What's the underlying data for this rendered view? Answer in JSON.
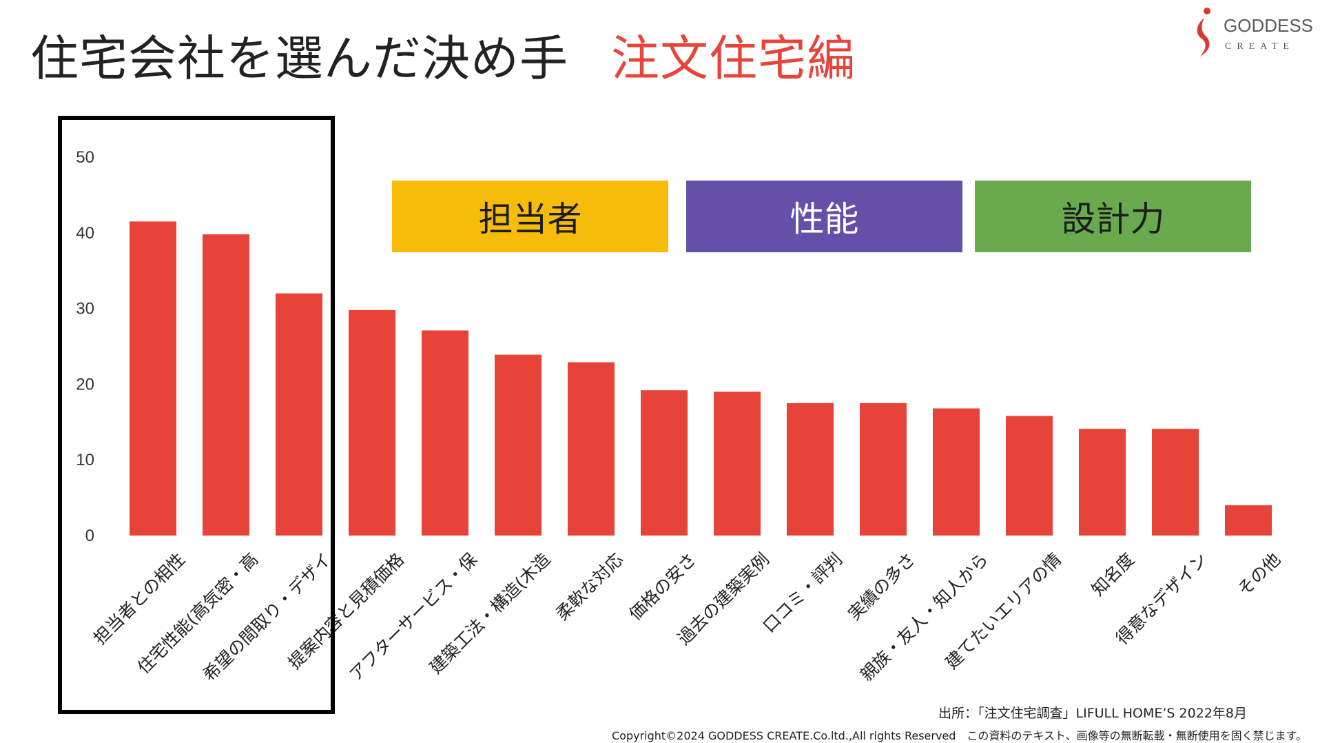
{
  "header": {
    "title_main": "住宅会社を選んだ決め手",
    "title_sub": "注文住宅編"
  },
  "logo": {
    "name": "GODDESS",
    "sub": "CREATE"
  },
  "category_boxes": [
    {
      "label": "担当者",
      "color": "#f7bc0a",
      "text_color": "#1c1c1c"
    },
    {
      "label": "性能",
      "color": "#6450a8",
      "text_color": "#ffffff"
    },
    {
      "label": "設計力",
      "color": "#6aaa4e",
      "text_color": "#1c1c1c"
    }
  ],
  "chart_data": {
    "type": "bar",
    "categories": [
      "担当者との相性",
      "住宅性能(高気密・高",
      "希望の間取り・デザイ",
      "提案内容と見積価格",
      "アフターサービス・保",
      "建築工法・構造(木造",
      "柔軟な対応",
      "価格の安さ",
      "過去の建築実例",
      "口コミ・評判",
      "実績の多さ",
      "親族・友人・知人から",
      "建てたいエリアの情",
      "知名度",
      "得意なデザイン",
      "その他"
    ],
    "values": [
      41.5,
      39.8,
      32,
      29.8,
      27.1,
      23.9,
      22.9,
      19.2,
      19,
      17.5,
      17.5,
      16.8,
      15.8,
      14.1,
      14.1,
      4
    ],
    "ylim": [
      0,
      50
    ],
    "yticks": [
      "0",
      "10",
      "20",
      "30",
      "40",
      "50"
    ],
    "bar_color": "#e84338",
    "grid": false
  },
  "footer": {
    "source": "出所：「注文住宅調査」LIFULL HOME’S 2022年8月",
    "copyright": "Copyright©2024 GODDESS CREATE.Co.ltd.,All rights Reserved　この資料のテキスト、画像等の無断転載・無断使用を固く禁じます。"
  }
}
